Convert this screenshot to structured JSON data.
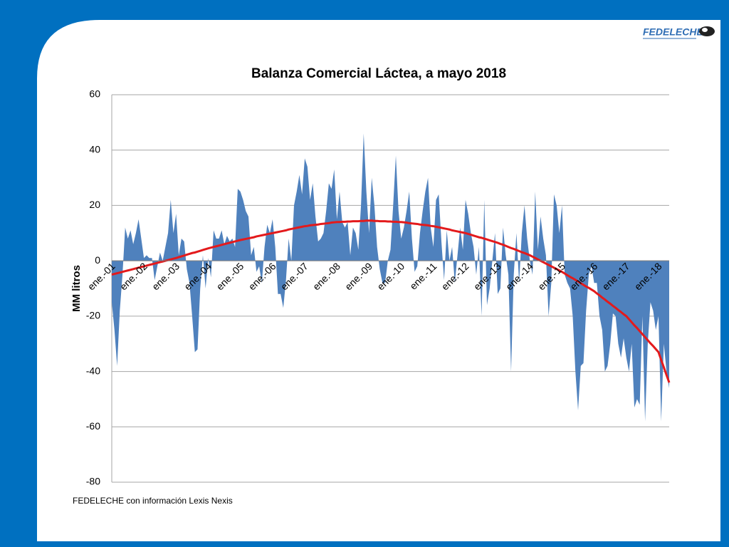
{
  "logo": {
    "text": "FEDELECHE"
  },
  "chart_data": {
    "type": "area",
    "title": "Balanza Comercial Láctea, a mayo 2018",
    "y_label": "MM litros",
    "source": "FEDELECHE con información Lexis Nexis",
    "categories": [
      "ene.-01",
      null,
      null,
      null,
      null,
      null,
      null,
      null,
      null,
      null,
      null,
      null,
      "ene.-02",
      null,
      null,
      null,
      null,
      null,
      null,
      null,
      null,
      null,
      null,
      null,
      "ene.-03",
      null,
      null,
      null,
      null,
      null,
      null,
      null,
      null,
      null,
      null,
      null,
      "ene.-04",
      null,
      null,
      null,
      null,
      null,
      null,
      null,
      null,
      null,
      null,
      null,
      "ene.-05",
      null,
      null,
      null,
      null,
      null,
      null,
      null,
      null,
      null,
      null,
      null,
      "ene.-06",
      null,
      null,
      null,
      null,
      null,
      null,
      null,
      null,
      null,
      null,
      null,
      "ene.-07",
      null,
      null,
      null,
      null,
      null,
      null,
      null,
      null,
      null,
      null,
      null,
      "ene.-08",
      null,
      null,
      null,
      null,
      null,
      null,
      null,
      null,
      null,
      null,
      null,
      "ene.-09",
      null,
      null,
      null,
      null,
      null,
      null,
      null,
      null,
      null,
      null,
      null,
      "ene.-10",
      null,
      null,
      null,
      null,
      null,
      null,
      null,
      null,
      null,
      null,
      null,
      "ene.-11",
      null,
      null,
      null,
      null,
      null,
      null,
      null,
      null,
      null,
      null,
      null,
      "ene.-12",
      null,
      null,
      null,
      null,
      null,
      null,
      null,
      null,
      null,
      null,
      null,
      "ene.-13",
      null,
      null,
      null,
      null,
      null,
      null,
      null,
      null,
      null,
      null,
      null,
      "ene.-14",
      null,
      null,
      null,
      null,
      null,
      null,
      null,
      null,
      null,
      null,
      null,
      "ene.-15",
      null,
      null,
      null,
      null,
      null,
      null,
      null,
      null,
      null,
      null,
      null,
      "ene.-16",
      null,
      null,
      null,
      null,
      null,
      null,
      null,
      null,
      null,
      null,
      null,
      "ene.-17",
      null,
      null,
      null,
      null,
      null,
      null,
      null,
      null,
      null,
      null,
      null,
      "ene.-18",
      null,
      null,
      null,
      null
    ],
    "series": [
      {
        "color": "#4f81bd",
        "values": [
          -15,
          -25,
          -38,
          -18,
          -5,
          12,
          8,
          11,
          6,
          10,
          15,
          8,
          1,
          2,
          1,
          1,
          -7,
          -2,
          3,
          0,
          5,
          10,
          22,
          10,
          17,
          2,
          8,
          7,
          -3,
          -8,
          -20,
          -33,
          -32,
          -10,
          2,
          -10,
          1,
          -6,
          11,
          8,
          8,
          11,
          6,
          9,
          7,
          8,
          5,
          26,
          25,
          22,
          18,
          16,
          2,
          5,
          -4,
          -2,
          -8,
          5,
          13,
          10,
          15,
          5,
          -12,
          -12,
          -17,
          -7,
          8,
          0,
          20,
          25,
          31,
          24,
          37,
          34,
          22,
          28,
          16,
          7,
          8,
          10,
          18,
          28,
          26,
          33,
          15,
          25,
          14,
          12,
          14,
          2,
          12,
          10,
          4,
          20,
          46,
          25,
          10,
          30,
          20,
          5,
          -3,
          -8,
          -8,
          0,
          4,
          20,
          38,
          18,
          8,
          12,
          18,
          25,
          8,
          -4,
          -2,
          10,
          18,
          25,
          30,
          12,
          5,
          22,
          24,
          7,
          -7,
          11,
          0,
          5,
          -8,
          2,
          12,
          4,
          22,
          17,
          10,
          5,
          -5,
          5,
          -20,
          22,
          -16,
          -10,
          0,
          10,
          -12,
          -10,
          12,
          2,
          -5,
          -40,
          -5,
          10,
          -8,
          10,
          20,
          8,
          0,
          -5,
          25,
          4,
          16,
          8,
          2,
          -20,
          -8,
          24,
          20,
          10,
          20,
          -5,
          -8,
          -10,
          -20,
          -40,
          -54,
          -38,
          -37,
          -18,
          -5,
          -2,
          -8,
          -8,
          -20,
          -25,
          -40,
          -38,
          -30,
          -19,
          -20,
          -30,
          -35,
          -28,
          -35,
          -40,
          -30,
          -53,
          -50,
          -52,
          -20,
          -58,
          -30,
          -15,
          -18,
          -25,
          -20,
          -58,
          -30,
          -40,
          -46
        ]
      },
      {
        "type": "line",
        "color": "#e31a1c",
        "values": [
          -5,
          -4.75,
          -4.5,
          -4.25,
          -4,
          -3.75,
          -3.5,
          -3.25,
          -3,
          -2.75,
          -2.5,
          -2.25,
          -2,
          -1.75,
          -1.5,
          -1.25,
          -1,
          -0.75,
          -0.5,
          -0.25,
          0,
          0.25,
          0.5,
          0.75,
          1,
          1.3,
          1.6,
          1.9,
          2.2,
          2.5,
          2.8,
          3,
          3.3,
          3.6,
          3.9,
          4.2,
          4.5,
          4.75,
          5,
          5.25,
          5.5,
          5.75,
          6,
          6.25,
          6.5,
          6.75,
          7,
          7.25,
          7.5,
          7.7,
          7.9,
          8.1,
          8.3,
          8.5,
          8.8,
          9,
          9.2,
          9.4,
          9.6,
          9.8,
          10,
          10.2,
          10.4,
          10.6,
          10.8,
          11,
          11.3,
          11.5,
          11.7,
          11.9,
          12.1,
          12.3,
          12.5,
          12.6,
          12.8,
          12.9,
          13,
          13.1,
          13.3,
          13.4,
          13.5,
          13.6,
          13.8,
          13.9,
          14,
          14,
          14.1,
          14.1,
          14.2,
          14.2,
          14.3,
          14.3,
          14.3,
          14.4,
          14.4,
          14.5,
          14.5,
          14.5,
          14.4,
          14.4,
          14.3,
          14.3,
          14.3,
          14.2,
          14.2,
          14.1,
          14.1,
          14,
          14,
          13.9,
          13.8,
          13.6,
          13.5,
          13.4,
          13.3,
          13.1,
          13,
          12.9,
          12.8,
          12.6,
          12.5,
          12.3,
          12.1,
          11.9,
          11.7,
          11.5,
          11.3,
          11,
          10.8,
          10.6,
          10.4,
          10.2,
          10,
          9.7,
          9.4,
          9.1,
          8.8,
          8.5,
          8.3,
          8,
          7.7,
          7.4,
          7.1,
          6.8,
          6.5,
          6.1,
          5.8,
          5.4,
          5,
          4.6,
          4.3,
          3.9,
          3.5,
          3.1,
          2.8,
          2.4,
          2,
          1.5,
          1,
          0.5,
          0,
          -0.5,
          -1,
          -1.5,
          -2,
          -2.5,
          -3,
          -3.5,
          -4,
          -4.6,
          -5.2,
          -5.8,
          -6.3,
          -6.9,
          -7.5,
          -8.1,
          -8.7,
          -9.3,
          -9.8,
          -10.4,
          -11,
          -11.8,
          -12.5,
          -13.3,
          -14,
          -14.8,
          -15.5,
          -16.3,
          -17,
          -17.8,
          -18.5,
          -19.3,
          -20,
          -21.1,
          -22.2,
          -23.3,
          -24.3,
          -25.4,
          -26.5,
          -27.6,
          -28.7,
          -29.8,
          -30.8,
          -31.9,
          -33,
          -35.8,
          -38.5,
          -41.3,
          -44
        ]
      }
    ],
    "ylim": [
      -80,
      60
    ],
    "yticks": [
      -80,
      -60,
      -40,
      -20,
      0,
      20,
      40,
      60
    ],
    "grid": true
  }
}
